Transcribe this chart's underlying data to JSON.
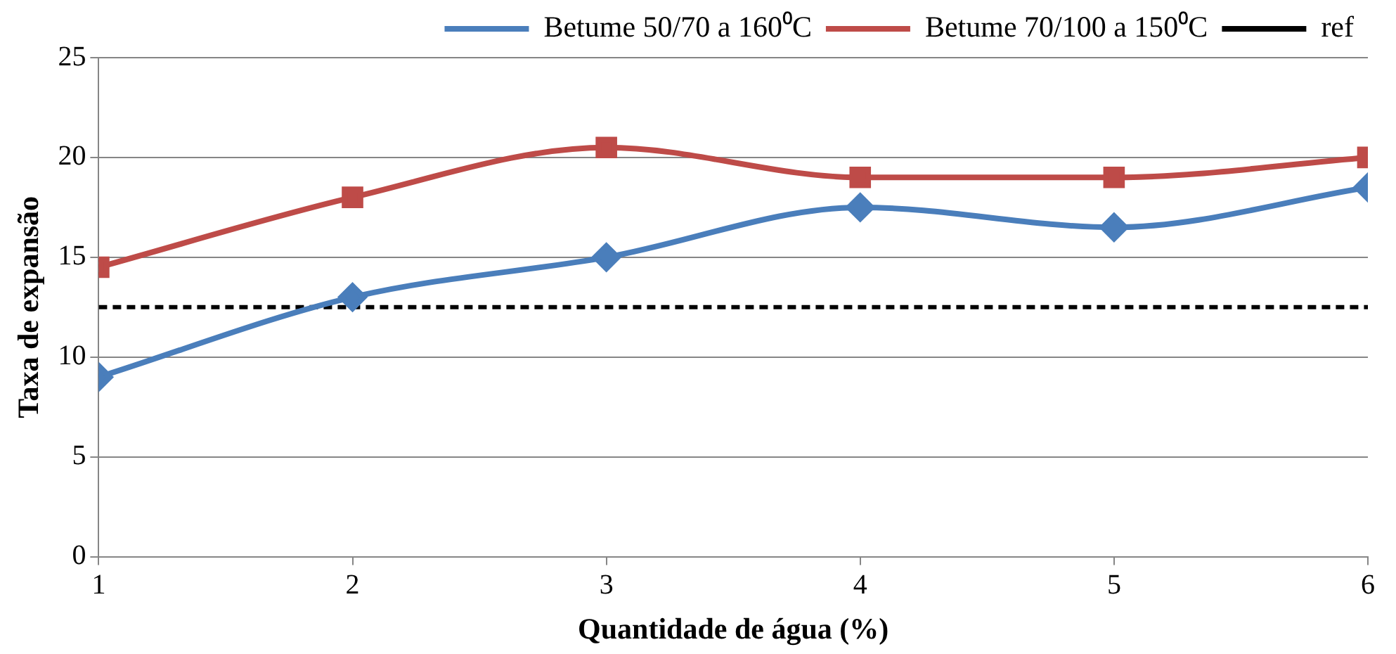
{
  "chart_data": {
    "type": "line",
    "xlabel": "Quantidade de água (%)",
    "ylabel": "Taxa de expansão",
    "x": [
      1,
      2,
      3,
      4,
      5,
      6
    ],
    "xlim": [
      1,
      6
    ],
    "xticks": [
      1,
      2,
      3,
      4,
      5,
      6
    ],
    "ylim": [
      0,
      25
    ],
    "yticks": [
      0,
      5,
      10,
      15,
      20,
      25
    ],
    "grid": "y",
    "legend": "top right",
    "line_style": "solid",
    "series": [
      {
        "name": "Betume 50/70 a 160⁰C",
        "color": "#4a7ebb",
        "marker": "diamond",
        "values": [
          9,
          13,
          15,
          17.5,
          16.5,
          18.5
        ]
      },
      {
        "name": "Betume 70/100 a 150⁰C",
        "color": "#be4b48",
        "marker": "square",
        "values": [
          14.5,
          18,
          20.5,
          19,
          19,
          20
        ]
      },
      {
        "name": "ref",
        "color": "#000000",
        "marker": "none",
        "line_style": "dashed",
        "values": [
          12.5,
          12.5,
          12.5,
          12.5,
          12.5,
          12.5
        ]
      }
    ]
  }
}
